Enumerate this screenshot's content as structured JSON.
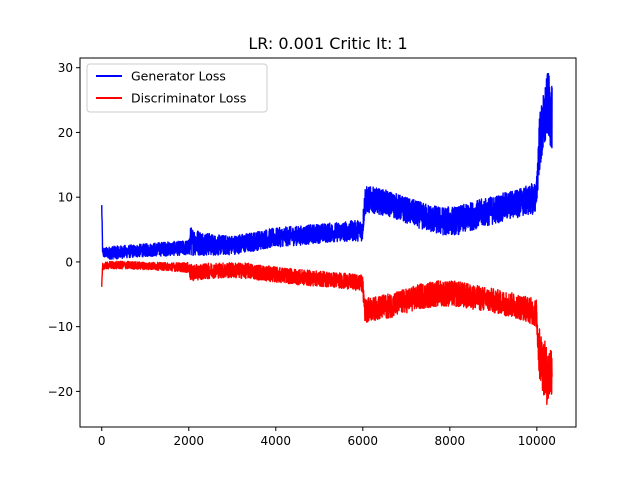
{
  "chart_data": {
    "type": "line",
    "title": "LR: 0.001 Critic It: 1",
    "xlabel": "",
    "ylabel": "",
    "xlim": [
      -500,
      10900
    ],
    "ylim": [
      -25.5,
      31.5
    ],
    "xticks": [
      0,
      2000,
      4000,
      6000,
      8000,
      10000
    ],
    "yticks": [
      -20,
      -10,
      0,
      10,
      20,
      30
    ],
    "xtick_labels": [
      "0",
      "2000",
      "4000",
      "6000",
      "8000",
      "10000"
    ],
    "ytick_labels": [
      "−20",
      "−10",
      "0",
      "10",
      "20",
      "30"
    ],
    "legend_position": "top-left",
    "grid": false,
    "series": [
      {
        "name": "Generator Loss",
        "color": "#0000ff",
        "x": [
          0,
          20,
          60,
          200,
          600,
          1000,
          1400,
          1800,
          2000,
          2040,
          2200,
          2600,
          3000,
          3400,
          3800,
          4200,
          4600,
          5000,
          5400,
          5800,
          5990,
          6050,
          6200,
          6600,
          7000,
          7400,
          7800,
          8200,
          8600,
          9000,
          9400,
          9800,
          9990,
          10050,
          10150,
          10250,
          10350
        ],
        "y": [
          8.5,
          1.5,
          1.4,
          1.4,
          1.6,
          1.8,
          2.0,
          2.1,
          2.2,
          3.2,
          3.0,
          2.6,
          2.6,
          3.0,
          3.6,
          3.9,
          4.1,
          4.4,
          4.6,
          4.8,
          4.9,
          9.5,
          9.6,
          9.0,
          8.0,
          7.0,
          6.3,
          6.4,
          7.3,
          8.0,
          8.8,
          9.5,
          10.0,
          18.0,
          21.0,
          24.5,
          22.0
        ],
        "band": [
          0.9,
          1.0,
          0.8,
          1.0,
          1.0,
          1.0,
          1.1,
          1.1,
          1.2,
          2.2,
          2.0,
          1.6,
          1.5,
          1.5,
          1.5,
          1.5,
          1.5,
          1.5,
          1.5,
          1.6,
          1.7,
          2.2,
          2.0,
          2.0,
          2.0,
          2.1,
          2.2,
          2.2,
          2.2,
          2.2,
          2.2,
          2.3,
          2.5,
          4.5,
          5.0,
          5.0,
          5.0
        ]
      },
      {
        "name": "Discriminator Loss",
        "color": "#ff0000",
        "x": [
          0,
          20,
          60,
          200,
          600,
          1000,
          1400,
          1800,
          2000,
          2040,
          2200,
          2600,
          3000,
          3400,
          3800,
          4200,
          4600,
          5000,
          5400,
          5800,
          5990,
          6050,
          6200,
          6600,
          7000,
          7400,
          7800,
          8200,
          8600,
          9000,
          9400,
          9800,
          9990,
          10050,
          10150,
          10250,
          10350
        ],
        "y": [
          -4.0,
          -0.8,
          -0.6,
          -0.5,
          -0.5,
          -0.6,
          -0.7,
          -0.8,
          -0.9,
          -1.7,
          -1.6,
          -1.3,
          -1.3,
          -1.4,
          -1.8,
          -2.1,
          -2.4,
          -2.6,
          -2.8,
          -3.1,
          -3.3,
          -7.5,
          -7.3,
          -6.8,
          -6.0,
          -5.2,
          -4.8,
          -5.0,
          -5.5,
          -6.0,
          -6.6,
          -7.3,
          -8.0,
          -14.0,
          -16.0,
          -18.0,
          -16.0
        ],
        "band": [
          0.9,
          0.6,
          0.5,
          0.6,
          0.6,
          0.6,
          0.6,
          0.7,
          0.8,
          1.3,
          1.2,
          1.2,
          1.2,
          1.2,
          1.2,
          1.2,
          1.2,
          1.2,
          1.2,
          1.2,
          1.3,
          1.9,
          1.8,
          1.9,
          1.9,
          2.0,
          2.0,
          2.0,
          1.9,
          1.9,
          1.9,
          2.0,
          2.2,
          4.0,
          4.5,
          4.5,
          4.5
        ]
      }
    ]
  }
}
